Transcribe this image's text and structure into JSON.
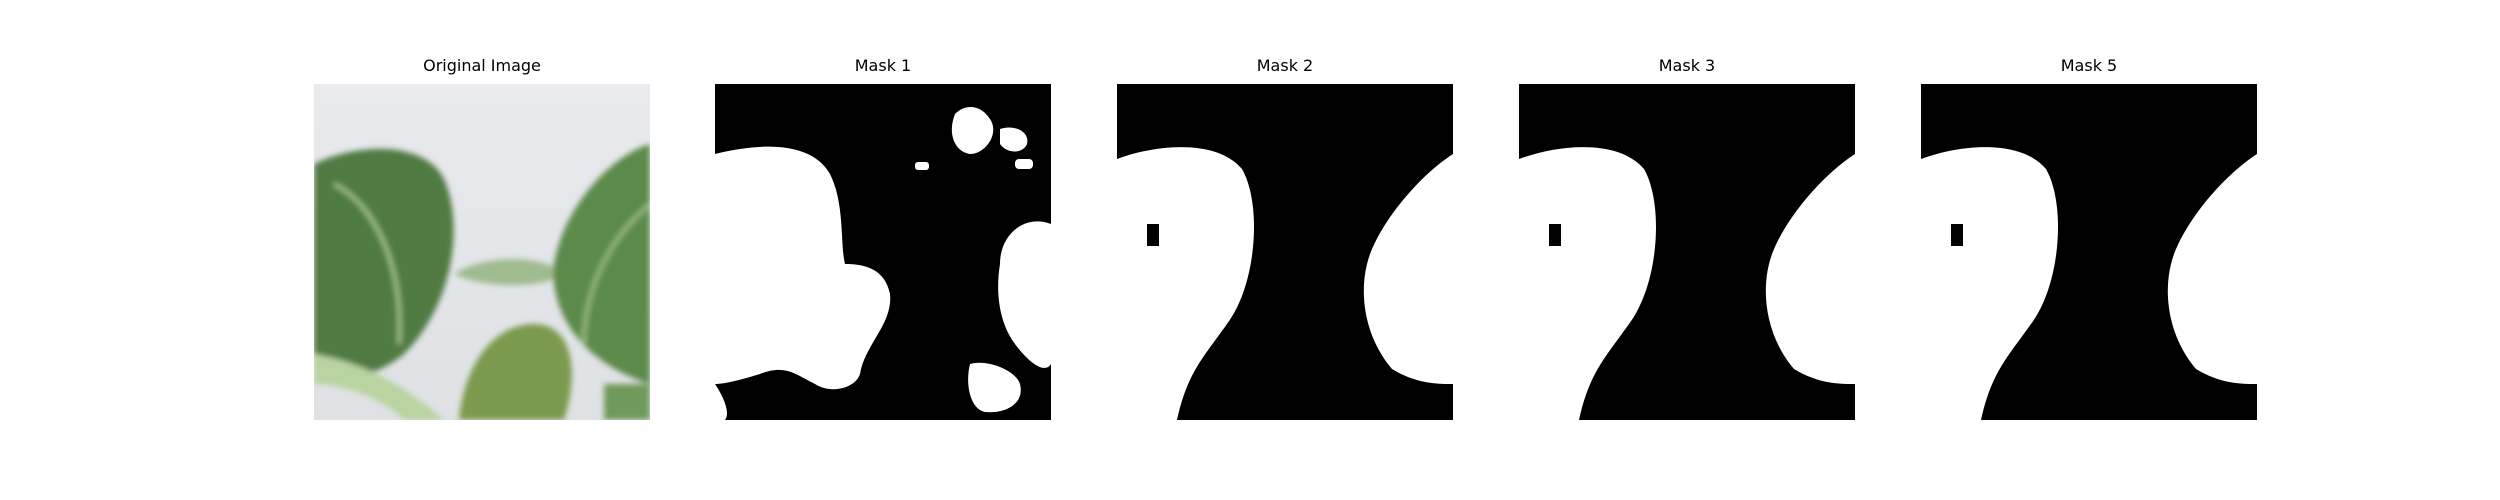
{
  "figure": {
    "panels": [
      {
        "title": "Original Image",
        "kind": "photo"
      },
      {
        "title": "Mask 1",
        "kind": "mask"
      },
      {
        "title": "Mask 2",
        "kind": "mask"
      },
      {
        "title": "Mask 3",
        "kind": "mask"
      },
      {
        "title": "Mask 5",
        "kind": "mask"
      }
    ]
  },
  "colors": {
    "mask_background": "#000000",
    "mask_foreground": "#ffffff",
    "photo_background": "#e6e7ea",
    "leaf_dark": "#4f7a43",
    "leaf_mid": "#6e9a5c",
    "leaf_light": "#a9c48f",
    "stem": "#b9d3a1"
  }
}
